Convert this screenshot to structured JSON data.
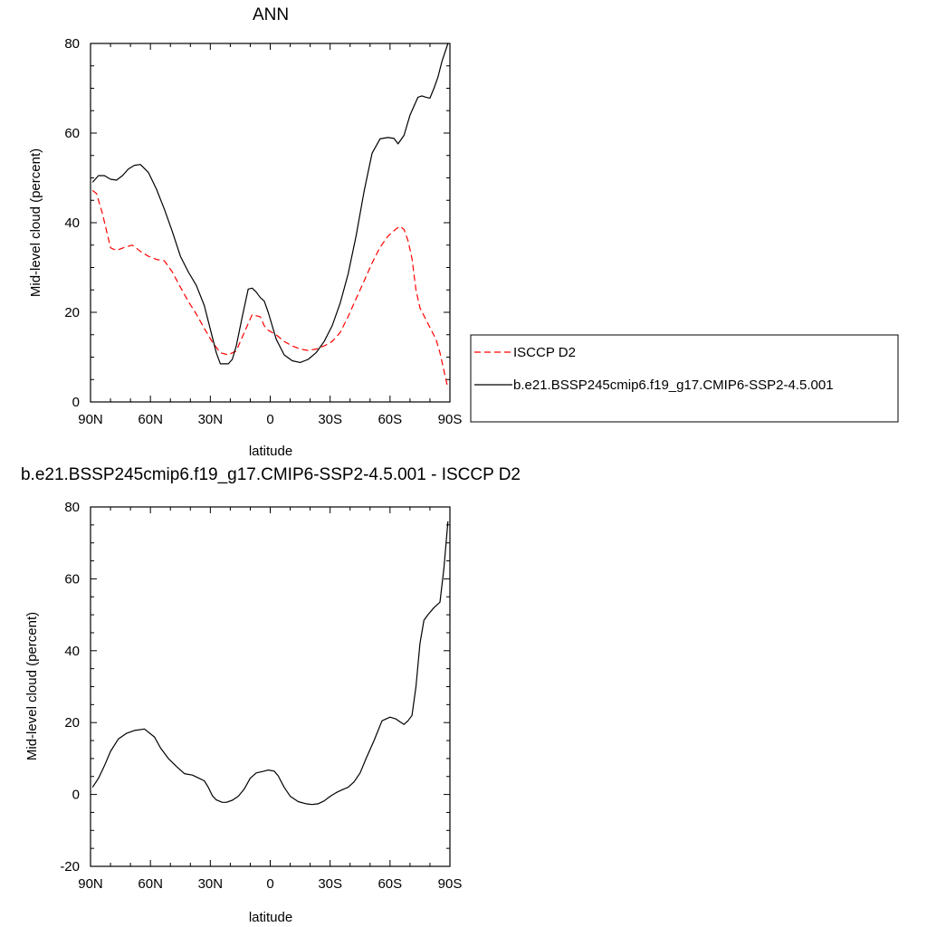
{
  "chart_data": [
    {
      "type": "line",
      "title": "ANN",
      "xlabel": "latitude",
      "ylabel": "Mid-level cloud (percent)",
      "x_ticks": [
        {
          "value": 90,
          "label": "90N"
        },
        {
          "value": 60,
          "label": "60N"
        },
        {
          "value": 30,
          "label": "30N"
        },
        {
          "value": 0,
          "label": "0"
        },
        {
          "value": -30,
          "label": "30S"
        },
        {
          "value": -60,
          "label": "60S"
        },
        {
          "value": -90,
          "label": "90S"
        }
      ],
      "xlim": [
        90,
        -90
      ],
      "ylim": [
        0,
        80
      ],
      "y_ticks": [
        0,
        20,
        40,
        60,
        80
      ],
      "legend_position": "right",
      "series": [
        {
          "name": "ISCCP D2",
          "color": "#ff0000",
          "dash": "dashed",
          "x": [
            89,
            87,
            84,
            80,
            77,
            73,
            69,
            65,
            61,
            57,
            53,
            49,
            45,
            41,
            37,
            33,
            29,
            25,
            21,
            17,
            13,
            9,
            5,
            3,
            1,
            -3,
            -7,
            -11,
            -15,
            -19,
            -23,
            -27,
            -31,
            -35,
            -39,
            -43,
            -47,
            -51,
            -55,
            -59,
            -63,
            -65,
            -67,
            -69,
            -71,
            -73,
            -75,
            -79,
            -83,
            -85,
            -87,
            -89
          ],
          "y": [
            47.2,
            46.5,
            42,
            34.4,
            33.8,
            34.5,
            35,
            33.6,
            32.5,
            31.8,
            31.5,
            29,
            25.6,
            22.4,
            19.6,
            16.4,
            13.4,
            11,
            10.5,
            11.4,
            15.5,
            19.5,
            19,
            17,
            16,
            15,
            13.5,
            12.5,
            11.8,
            11.5,
            11.8,
            12.5,
            13.5,
            15.5,
            19,
            23,
            27,
            31,
            34.5,
            37,
            38.6,
            39.2,
            38.5,
            36,
            32,
            25,
            21,
            17.5,
            14,
            11,
            7,
            3
          ]
        },
        {
          "name": "b.e21.BSSP245cmip6.f19_g17.CMIP6-SSP2-4.5.001",
          "color": "#000000",
          "dash": "solid",
          "x": [
            89,
            86,
            83,
            80,
            77,
            74,
            71,
            68,
            65,
            61,
            57,
            53,
            49,
            45,
            41,
            37,
            33,
            29,
            27,
            25,
            23,
            21,
            19,
            17,
            14,
            11,
            9,
            7,
            5,
            3,
            1,
            -3,
            -7,
            -11,
            -15,
            -19,
            -23,
            -27,
            -31,
            -35,
            -39,
            -43,
            -47,
            -51,
            -55,
            -59,
            -62,
            -64,
            -67,
            -70,
            -72,
            -74,
            -76,
            -78,
            -80,
            -82,
            -84,
            -86,
            -89
          ],
          "y": [
            49,
            50.5,
            50.5,
            49.7,
            49.5,
            50.5,
            52,
            52.8,
            53,
            51.2,
            47.5,
            43,
            38,
            32.5,
            29,
            26,
            21.5,
            14.5,
            11,
            8.5,
            8.5,
            8.5,
            9.5,
            12.5,
            19,
            25.2,
            25.4,
            24.5,
            23.3,
            22.5,
            20,
            14,
            10.5,
            9.2,
            8.8,
            9.5,
            11,
            13.5,
            17,
            22,
            28.5,
            37,
            47,
            55.5,
            58.7,
            59,
            58.8,
            57.6,
            59.5,
            64,
            66,
            68,
            68.3,
            68,
            67.8,
            70,
            72.5,
            76,
            80
          ]
        }
      ]
    },
    {
      "type": "line",
      "title": "b.e21.BSSP245cmip6.f19_g17.CMIP6-SSP2-4.5.001 - ISCCP D2",
      "xlabel": "latitude",
      "ylabel": "Mid-level cloud (percent)",
      "x_ticks": [
        {
          "value": 90,
          "label": "90N"
        },
        {
          "value": 60,
          "label": "60N"
        },
        {
          "value": 30,
          "label": "30N"
        },
        {
          "value": 0,
          "label": "0"
        },
        {
          "value": -30,
          "label": "30S"
        },
        {
          "value": -60,
          "label": "60S"
        },
        {
          "value": -90,
          "label": "90S"
        }
      ],
      "xlim": [
        90,
        -90
      ],
      "ylim": [
        -20,
        80
      ],
      "y_ticks": [
        -20,
        0,
        20,
        40,
        60,
        80
      ],
      "series": [
        {
          "name": "",
          "color": "#000000",
          "dash": "solid",
          "x": [
            89,
            86,
            83,
            80,
            76,
            72,
            68,
            63,
            58,
            55,
            51,
            47,
            43,
            39,
            36,
            33,
            31,
            29,
            27,
            24,
            22,
            19,
            16,
            13,
            10,
            7,
            3,
            1,
            -2,
            -4,
            -7,
            -10,
            -14,
            -18,
            -21,
            -24,
            -27,
            -30,
            -33,
            -36,
            -39,
            -42,
            -45,
            -48,
            -52,
            -56,
            -60,
            -63,
            -65,
            -67,
            -69,
            -71,
            -73,
            -75,
            -77,
            -79,
            -82,
            -85,
            -87,
            -89
          ],
          "y": [
            2,
            4.5,
            8,
            12,
            15.5,
            17,
            17.8,
            18.2,
            16,
            13,
            10,
            7.8,
            5.8,
            5.4,
            4.6,
            3.8,
            2,
            -0.3,
            -1.5,
            -2.2,
            -2.2,
            -1.6,
            -0.5,
            1.5,
            4.5,
            6,
            6.5,
            6.8,
            6.5,
            5.2,
            2,
            -0.5,
            -2,
            -2.6,
            -2.8,
            -2.6,
            -1.8,
            -0.5,
            0.5,
            1.3,
            2,
            3.5,
            6,
            10,
            15,
            20.5,
            21.5,
            21,
            20.2,
            19.5,
            20.5,
            22,
            30,
            42,
            48.5,
            50,
            52,
            53.5,
            63,
            76
          ]
        }
      ]
    }
  ],
  "legend": {
    "items": [
      {
        "label": "ISCCP D2",
        "color": "#ff0000",
        "dash": "dashed"
      },
      {
        "label": "b.e21.BSSP245cmip6.f19_g17.CMIP6-SSP2-4.5.001",
        "color": "#000000",
        "dash": "solid"
      }
    ]
  }
}
